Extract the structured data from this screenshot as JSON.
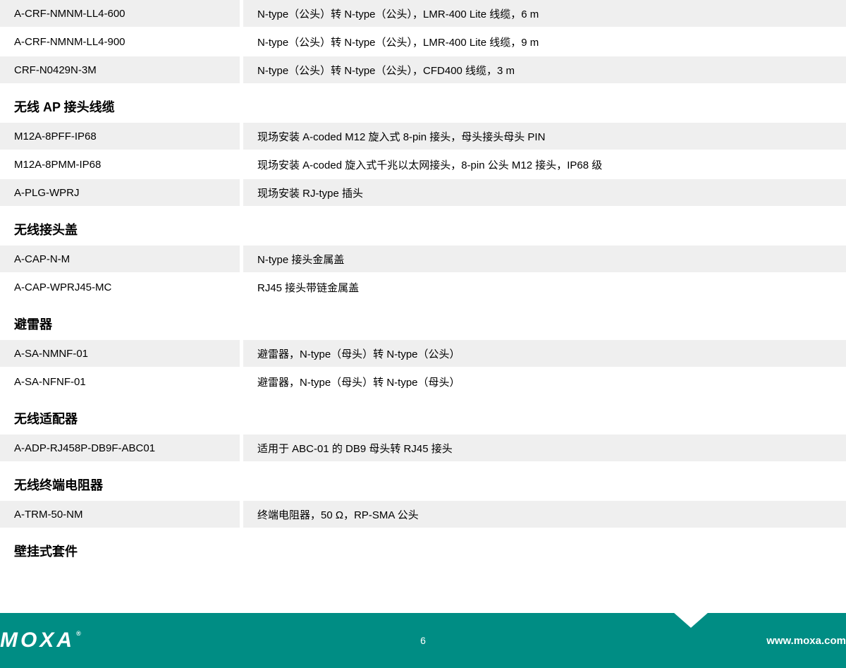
{
  "colors": {
    "row_bg": "#efefef",
    "footer_bg": "#008d84",
    "text": "#000000",
    "footer_text": "#ffffff"
  },
  "sections": [
    {
      "title": null,
      "rows": [
        {
          "code": "A-CRF-NMNM-LL4-600",
          "desc": "N-type（公头）转 N-type（公头），LMR-400 Lite 线缆，6 m"
        },
        {
          "code": "A-CRF-NMNM-LL4-900",
          "desc": "N-type（公头）转 N-type（公头），LMR-400 Lite 线缆，9 m"
        },
        {
          "code": "CRF-N0429N-3M",
          "desc": "N-type（公头）转 N-type（公头），CFD400 线缆，3 m"
        }
      ]
    },
    {
      "title": "无线 AP 接头线缆",
      "rows": [
        {
          "code": "M12A-8PFF-IP68",
          "desc": "现场安装 A-coded M12 旋入式 8-pin 接头，母头接头母头 PIN"
        },
        {
          "code": "M12A-8PMM-IP68",
          "desc": "现场安装 A-coded 旋入式千兆以太网接头，8-pin 公头 M12 接头，IP68 级"
        },
        {
          "code": "A-PLG-WPRJ",
          "desc": "现场安装 RJ-type 插头"
        }
      ]
    },
    {
      "title": "无线接头盖",
      "rows": [
        {
          "code": "A-CAP-N-M",
          "desc": "N-type 接头金属盖"
        },
        {
          "code": "A-CAP-WPRJ45-MC",
          "desc": "RJ45 接头带链金属盖"
        }
      ]
    },
    {
      "title": "避雷器",
      "rows": [
        {
          "code": "A-SA-NMNF-01",
          "desc": "避雷器，N-type（母头）转 N-type（公头）"
        },
        {
          "code": "A-SA-NFNF-01",
          "desc": "避雷器，N-type（母头）转 N-type（母头）"
        }
      ]
    },
    {
      "title": "无线适配器",
      "rows": [
        {
          "code": "A-ADP-RJ458P-DB9F-ABC01",
          "desc": "适用于 ABC-01 的 DB9 母头转 RJ45 接头"
        }
      ]
    },
    {
      "title": "无线终端电阻器",
      "rows": [
        {
          "code": "A-TRM-50-NM",
          "desc": "终端电阻器，50 Ω，RP-SMA 公头"
        }
      ]
    },
    {
      "title": "壁挂式套件",
      "rows": []
    }
  ],
  "footer": {
    "logo": "MOXA",
    "page": "6",
    "url": "www.moxa.com"
  }
}
